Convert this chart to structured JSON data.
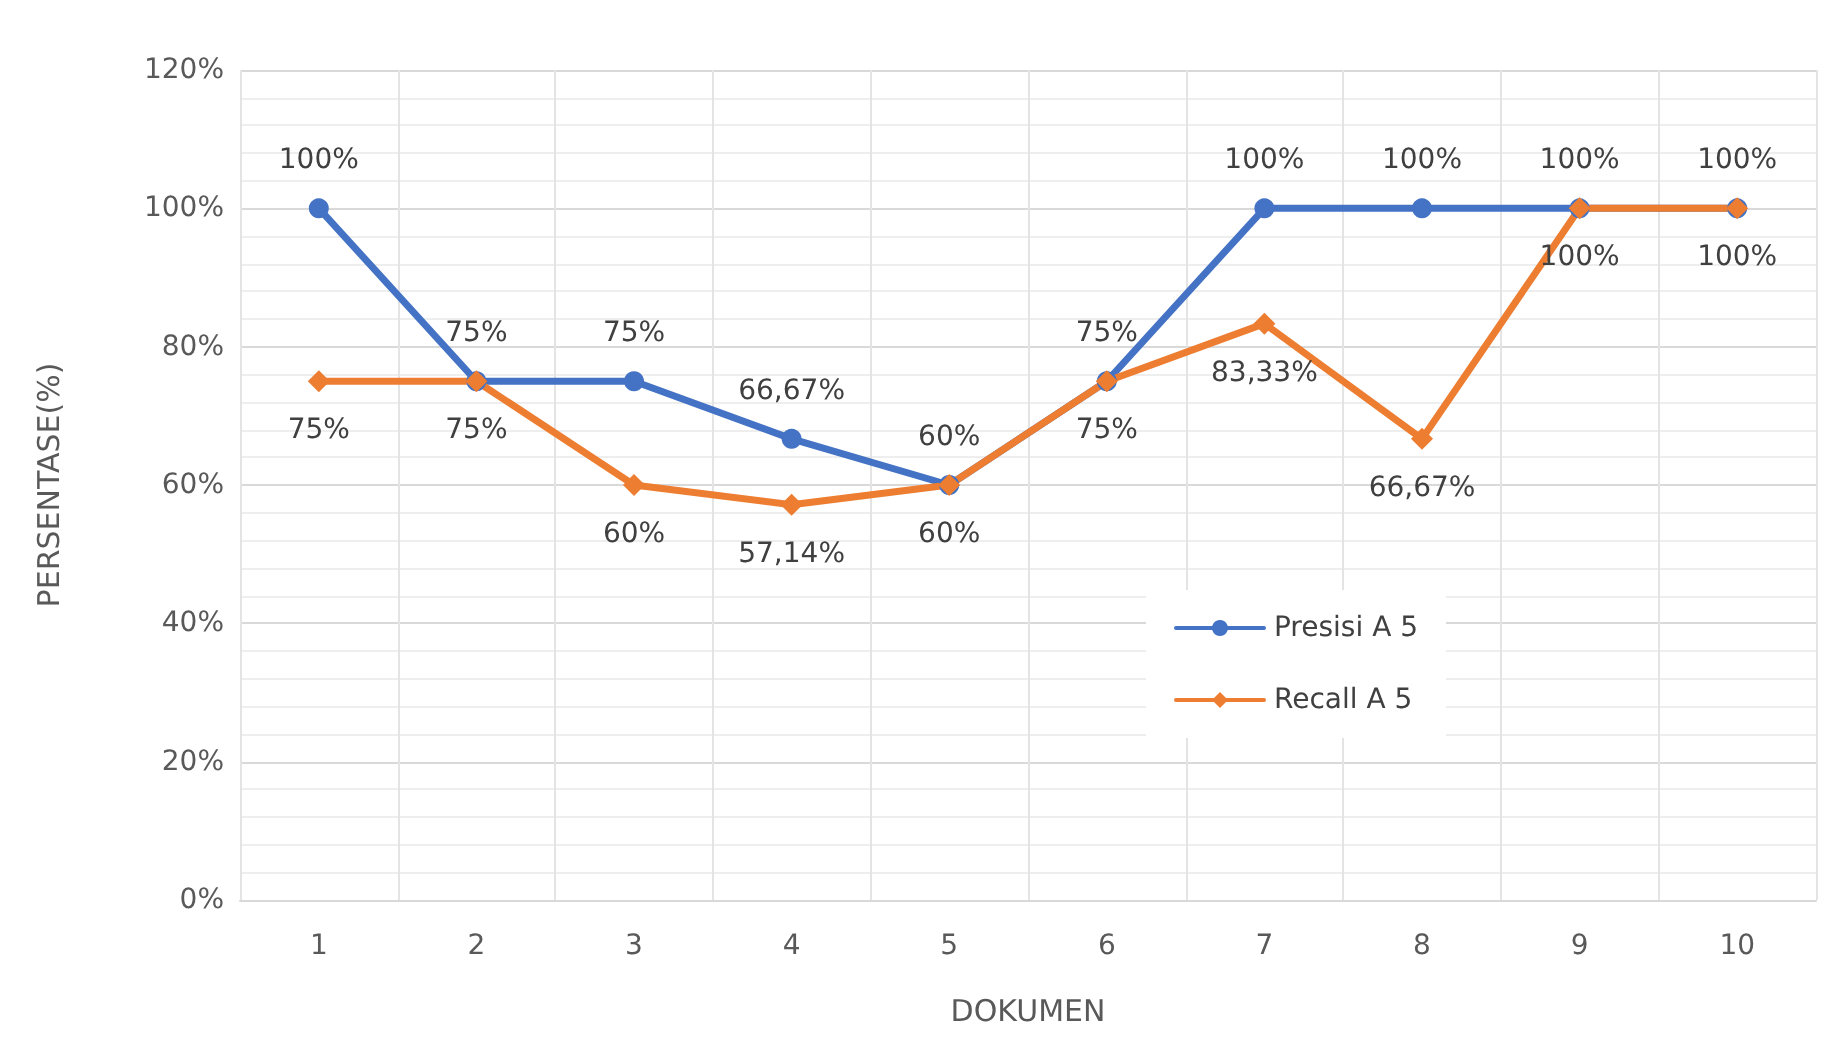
{
  "chart_data": {
    "type": "line",
    "xlabel": "DOKUMEN",
    "ylabel": "PERSENTASE(%)",
    "categories": [
      "1",
      "2",
      "3",
      "4",
      "5",
      "6",
      "7",
      "8",
      "9",
      "10"
    ],
    "series": [
      {
        "name": "Presisi A 5",
        "color": "#4472c4",
        "marker": "circle",
        "values": [
          100,
          75,
          75,
          66.67,
          60,
          75,
          100,
          100,
          100,
          100
        ],
        "value_labels": [
          "100%",
          "75%",
          "75%",
          "66,67%",
          "60%",
          "75%",
          "100%",
          "100%",
          "100%",
          "100%"
        ]
      },
      {
        "name": "Recall A 5",
        "color": "#ed7d31",
        "marker": "diamond",
        "values": [
          75,
          75,
          60,
          57.14,
          60,
          75,
          83.33,
          66.67,
          100,
          100
        ],
        "value_labels": [
          "75%",
          "75%",
          "60%",
          "57,14%",
          "60%",
          "75%",
          "83,33%",
          "66,67%",
          "100%",
          "100%"
        ]
      }
    ],
    "ylim": [
      0,
      120
    ],
    "yticks": [
      {
        "value": 0,
        "label": "0%"
      },
      {
        "value": 20,
        "label": "20%"
      },
      {
        "value": 40,
        "label": "40%"
      },
      {
        "value": 60,
        "label": "60%"
      },
      {
        "value": 80,
        "label": "80%"
      },
      {
        "value": 100,
        "label": "100%"
      },
      {
        "value": 120,
        "label": "120%"
      }
    ],
    "grid": true,
    "legend": "right"
  }
}
